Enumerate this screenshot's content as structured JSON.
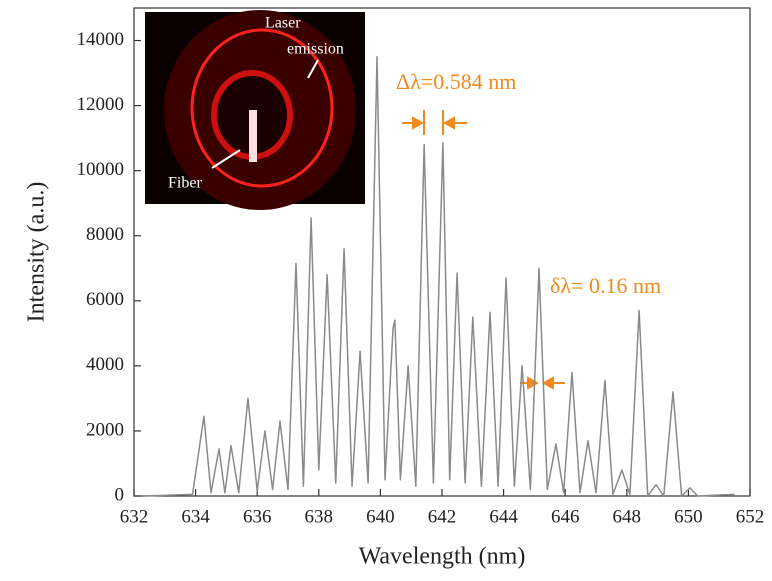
{
  "chart_data": {
    "type": "line",
    "x_label": "Wavelength (nm)",
    "y_label": "Intensity (a.u.)",
    "annotations": [
      "Δλ=0.584 nm",
      "δλ= 0.16 nm",
      "Laser",
      "emission",
      "Fiber"
    ],
    "color": "#8a8a8a",
    "x": [
      632.3,
      633.9,
      634.27,
      634.5,
      634.76,
      634.95,
      635.15,
      635.4,
      635.7,
      636.0,
      636.25,
      636.5,
      636.74,
      637.0,
      637.26,
      637.5,
      637.75,
      638.0,
      638.27,
      638.55,
      638.82,
      639.08,
      639.34,
      639.6,
      639.89,
      640.15,
      640.41,
      640.47,
      640.65,
      640.9,
      641.15,
      641.42,
      641.72,
      642.03,
      642.25,
      642.49,
      642.75,
      643.0,
      643.28,
      643.56,
      643.82,
      644.08,
      644.35,
      644.6,
      644.87,
      645.15,
      645.42,
      645.7,
      645.95,
      646.22,
      646.48,
      646.74,
      647.0,
      647.29,
      647.55,
      647.84,
      648.1,
      648.4,
      648.68,
      648.95,
      649.2,
      649.5,
      649.78,
      650.05,
      650.3,
      651.5
    ],
    "values": [
      0,
      50,
      2450,
      100,
      1450,
      100,
      1550,
      100,
      3000,
      150,
      2000,
      200,
      2300,
      200,
      7150,
      300,
      8550,
      800,
      6800,
      400,
      7600,
      300,
      4450,
      400,
      13500,
      500,
      5150,
      5400,
      500,
      4000,
      300,
      10800,
      400,
      10850,
      500,
      6850,
      400,
      5500,
      300,
      5650,
      300,
      6700,
      300,
      4000,
      200,
      7000,
      200,
      1600,
      100,
      3800,
      100,
      1700,
      100,
      3550,
      50,
      800,
      50,
      5700,
      0,
      350,
      0,
      3200,
      0,
      250,
      0,
      50
    ],
    "xlim": [
      632,
      652
    ],
    "ylim": [
      0,
      15000
    ],
    "xticks": [
      632,
      634,
      636,
      638,
      640,
      642,
      644,
      646,
      648,
      650,
      652
    ],
    "yticks": [
      0,
      2000,
      4000,
      6000,
      8000,
      10000,
      12000,
      14000
    ]
  }
}
